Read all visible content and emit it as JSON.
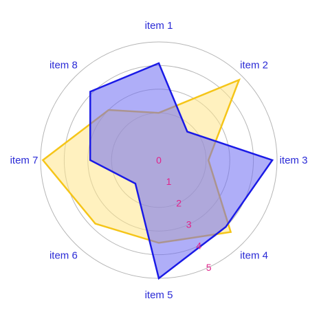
{
  "chart_data": {
    "type": "radar",
    "categories": [
      "item 1",
      "item 2",
      "item 3",
      "item 4",
      "item 5",
      "item 6",
      "item 7",
      "item 8"
    ],
    "radial_ticks": [
      "0",
      "1",
      "2",
      "3",
      "4",
      "5"
    ],
    "rlim": [
      0,
      5
    ],
    "grid": true,
    "series": [
      {
        "values": [
          2.0,
          4.8,
          2.1,
          4.3,
          3.5,
          3.8,
          4.9,
          3.0
        ],
        "fill": "#ffe58a",
        "stroke": "#f5c518"
      },
      {
        "values": [
          4.1,
          1.7,
          4.8,
          4.0,
          5.0,
          1.4,
          2.9,
          4.1
        ],
        "fill": "#6d6cf2",
        "stroke": "#1a1ae6"
      }
    ],
    "colors": {
      "category_label": "#2a2ad6",
      "tick_label": "#e0218a",
      "grid": "#b5b5b5"
    }
  }
}
